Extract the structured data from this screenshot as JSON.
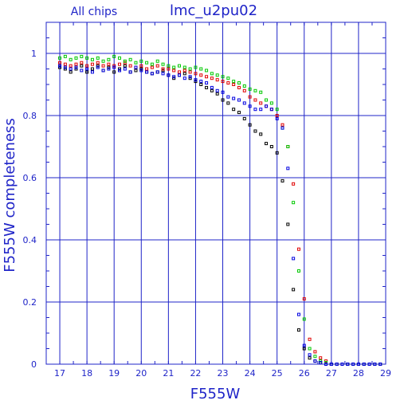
{
  "chart_data": {
    "type": "scatter",
    "title": "lmc_u2pu02",
    "subtitle": "All chips",
    "xlabel": "F555W",
    "ylabel": "F555W completeness",
    "xlim": [
      16.5,
      29
    ],
    "ylim": [
      0,
      1.1
    ],
    "grid": true,
    "x_ticks": [
      "17",
      "18",
      "19",
      "20",
      "21",
      "22",
      "23",
      "24",
      "25",
      "26",
      "27",
      "28",
      "29"
    ],
    "y_ticks": [
      "0",
      "0.2",
      "0.4",
      "0.6",
      "0.8",
      "1"
    ],
    "colors": {
      "axis": "#1f24c8",
      "black": "#000000",
      "red": "#e00000",
      "green": "#00c800",
      "blue": "#0000e0"
    },
    "series": [
      {
        "color": "#000000",
        "x": [
          17.0,
          17.2,
          17.4,
          17.6,
          17.8,
          18.0,
          18.2,
          18.4,
          18.6,
          18.8,
          19.0,
          19.2,
          19.4,
          19.6,
          19.8,
          20.0,
          20.2,
          20.4,
          20.6,
          20.8,
          21.0,
          21.2,
          21.4,
          21.6,
          21.8,
          22.0,
          22.2,
          22.4,
          22.6,
          22.8,
          23.0,
          23.2,
          23.4,
          23.6,
          23.8,
          24.0,
          24.2,
          24.4,
          24.6,
          24.8,
          25.0,
          25.2,
          25.4,
          25.6,
          25.8,
          26.0,
          26.2,
          26.4,
          26.6,
          26.8,
          27.0,
          27.2,
          27.4,
          27.6,
          27.8,
          28.0,
          28.2,
          28.4,
          28.6,
          28.8
        ],
        "y": [
          0.955,
          0.95,
          0.94,
          0.95,
          0.96,
          0.94,
          0.95,
          0.96,
          0.945,
          0.955,
          0.94,
          0.95,
          0.96,
          0.94,
          0.945,
          0.95,
          0.94,
          0.935,
          0.94,
          0.945,
          0.93,
          0.92,
          0.93,
          0.935,
          0.92,
          0.91,
          0.9,
          0.89,
          0.88,
          0.87,
          0.85,
          0.84,
          0.82,
          0.81,
          0.79,
          0.77,
          0.75,
          0.74,
          0.71,
          0.7,
          0.68,
          0.59,
          0.45,
          0.24,
          0.11,
          0.05,
          0.02,
          0.01,
          0.005,
          0.0,
          0.0,
          0.0,
          0.0,
          0.0,
          0.0,
          0.0,
          0.0,
          0.0,
          0.0,
          0.0
        ]
      },
      {
        "color": "#e00000",
        "x": [
          17.0,
          17.2,
          17.4,
          17.6,
          17.8,
          18.0,
          18.2,
          18.4,
          18.6,
          18.8,
          19.0,
          19.2,
          19.4,
          19.6,
          19.8,
          20.0,
          20.2,
          20.4,
          20.6,
          20.8,
          21.0,
          21.2,
          21.4,
          21.6,
          21.8,
          22.0,
          22.2,
          22.4,
          22.6,
          22.8,
          23.0,
          23.2,
          23.4,
          23.6,
          23.8,
          24.0,
          24.2,
          24.4,
          24.6,
          24.8,
          25.0,
          25.2,
          25.4,
          25.6,
          25.8,
          26.0,
          26.2,
          26.4,
          26.6,
          26.8,
          27.0,
          27.2,
          27.4,
          27.6,
          27.8,
          28.0,
          28.2,
          28.4,
          28.6,
          28.8
        ],
        "y": [
          0.97,
          0.965,
          0.96,
          0.965,
          0.97,
          0.96,
          0.965,
          0.97,
          0.96,
          0.965,
          0.96,
          0.965,
          0.97,
          0.96,
          0.955,
          0.96,
          0.95,
          0.955,
          0.96,
          0.95,
          0.95,
          0.945,
          0.94,
          0.945,
          0.94,
          0.935,
          0.93,
          0.925,
          0.92,
          0.915,
          0.91,
          0.905,
          0.9,
          0.89,
          0.88,
          0.86,
          0.85,
          0.84,
          0.83,
          0.82,
          0.8,
          0.77,
          0.7,
          0.58,
          0.37,
          0.21,
          0.08,
          0.04,
          0.02,
          0.01,
          0.0,
          0.0,
          0.0,
          0.0,
          0.0,
          0.0,
          0.0,
          0.0,
          0.0,
          0.0
        ]
      },
      {
        "color": "#00c800",
        "x": [
          17.0,
          17.2,
          17.4,
          17.6,
          17.8,
          18.0,
          18.2,
          18.4,
          18.6,
          18.8,
          19.0,
          19.2,
          19.4,
          19.6,
          19.8,
          20.0,
          20.2,
          20.4,
          20.6,
          20.8,
          21.0,
          21.2,
          21.4,
          21.6,
          21.8,
          22.0,
          22.2,
          22.4,
          22.6,
          22.8,
          23.0,
          23.2,
          23.4,
          23.6,
          23.8,
          24.0,
          24.2,
          24.4,
          24.6,
          24.8,
          25.0,
          25.2,
          25.4,
          25.6,
          25.8,
          26.0,
          26.2,
          26.4,
          26.6,
          26.8,
          27.0,
          27.2,
          27.4,
          27.6,
          27.8,
          28.0,
          28.2,
          28.4,
          28.6,
          28.8
        ],
        "y": [
          0.985,
          0.99,
          0.98,
          0.985,
          0.99,
          0.985,
          0.98,
          0.985,
          0.975,
          0.98,
          0.99,
          0.985,
          0.975,
          0.98,
          0.97,
          0.975,
          0.97,
          0.965,
          0.975,
          0.965,
          0.96,
          0.955,
          0.96,
          0.955,
          0.95,
          0.955,
          0.95,
          0.945,
          0.935,
          0.93,
          0.925,
          0.92,
          0.91,
          0.905,
          0.895,
          0.885,
          0.88,
          0.875,
          0.85,
          0.84,
          0.82,
          0.76,
          0.7,
          0.52,
          0.3,
          0.145,
          0.05,
          0.025,
          0.01,
          0.005,
          0.0,
          0.0,
          0.0,
          0.0,
          0.0,
          0.0,
          0.0,
          0.0,
          0.0,
          0.0
        ]
      },
      {
        "color": "#0000e0",
        "x": [
          17.0,
          17.2,
          17.4,
          17.6,
          17.8,
          18.0,
          18.2,
          18.4,
          18.6,
          18.8,
          19.0,
          19.2,
          19.4,
          19.6,
          19.8,
          20.0,
          20.2,
          20.4,
          20.6,
          20.8,
          21.0,
          21.2,
          21.4,
          21.6,
          21.8,
          22.0,
          22.2,
          22.4,
          22.6,
          22.8,
          23.0,
          23.2,
          23.4,
          23.6,
          23.8,
          24.0,
          24.2,
          24.4,
          24.6,
          24.8,
          25.0,
          25.2,
          25.4,
          25.6,
          25.8,
          26.0,
          26.2,
          26.4,
          26.6,
          26.8,
          27.0,
          27.2,
          27.4,
          27.6,
          27.8,
          28.0,
          28.2,
          28.4,
          28.6,
          28.8
        ],
        "y": [
          0.96,
          0.955,
          0.95,
          0.955,
          0.945,
          0.95,
          0.94,
          0.955,
          0.945,
          0.95,
          0.955,
          0.945,
          0.95,
          0.94,
          0.955,
          0.945,
          0.94,
          0.935,
          0.94,
          0.935,
          0.93,
          0.925,
          0.93,
          0.92,
          0.925,
          0.915,
          0.91,
          0.905,
          0.89,
          0.88,
          0.875,
          0.86,
          0.855,
          0.85,
          0.84,
          0.83,
          0.82,
          0.82,
          0.83,
          0.82,
          0.79,
          0.76,
          0.63,
          0.34,
          0.16,
          0.06,
          0.03,
          0.01,
          0.005,
          0.0,
          0.0,
          0.0,
          0.0,
          0.0,
          0.0,
          0.0,
          0.0,
          0.0,
          0.0,
          0.0
        ]
      }
    ]
  }
}
